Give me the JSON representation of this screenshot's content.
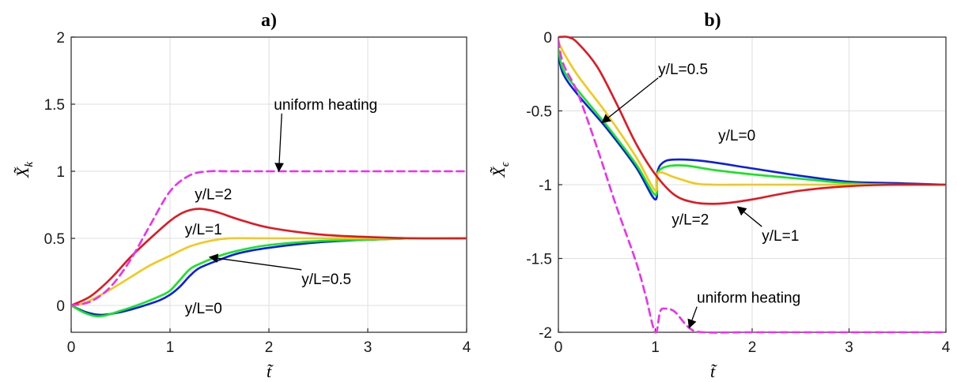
{
  "chart_data": [
    {
      "type": "line",
      "title": "a)",
      "xlabel": "t̃",
      "ylabel": "X̃",
      "ylabel_sub": "k",
      "xlim": [
        0,
        4
      ],
      "ylim": [
        -0.2,
        2
      ],
      "xticks": [
        "0",
        "1",
        "2",
        "3",
        "4"
      ],
      "yticks": [
        "0",
        "0.5",
        "1",
        "1.5",
        "2"
      ],
      "grid": true,
      "series": [
        {
          "name": "y/L=0",
          "color": "#0a1fe6",
          "dashed": false,
          "x": [
            0,
            0.15,
            0.3,
            0.5,
            0.7,
            0.9,
            1.0,
            1.1,
            1.2,
            1.3,
            1.5,
            1.7,
            2.0,
            2.5,
            3.0,
            3.5,
            4.0
          ],
          "y": [
            0,
            -0.05,
            -0.07,
            -0.05,
            -0.01,
            0.04,
            0.08,
            0.14,
            0.22,
            0.28,
            0.34,
            0.39,
            0.43,
            0.47,
            0.49,
            0.5,
            0.5
          ]
        },
        {
          "name": "y/L=0.5",
          "color": "#12e61e",
          "dashed": false,
          "x": [
            0,
            0.15,
            0.3,
            0.5,
            0.7,
            0.9,
            1.0,
            1.1,
            1.2,
            1.3,
            1.5,
            1.7,
            2.0,
            2.5,
            3.0,
            3.5,
            4.0
          ],
          "y": [
            0,
            -0.06,
            -0.08,
            -0.04,
            0.01,
            0.07,
            0.11,
            0.19,
            0.27,
            0.31,
            0.37,
            0.41,
            0.45,
            0.48,
            0.49,
            0.5,
            0.5
          ]
        },
        {
          "name": "y/L=1",
          "color": "#f5c816",
          "dashed": false,
          "x": [
            0,
            0.1,
            0.2,
            0.4,
            0.6,
            0.8,
            1.0,
            1.2,
            1.4,
            1.6,
            2.0,
            3.0,
            4.0
          ],
          "y": [
            0,
            0.01,
            0.04,
            0.12,
            0.21,
            0.3,
            0.37,
            0.44,
            0.48,
            0.5,
            0.5,
            0.5,
            0.5
          ]
        },
        {
          "name": "y/L=2",
          "color": "#e8141e",
          "dashed": false,
          "x": [
            0,
            0.2,
            0.4,
            0.6,
            0.8,
            1.0,
            1.1,
            1.2,
            1.3,
            1.4,
            1.5,
            1.7,
            2.0,
            2.5,
            3.0,
            3.5,
            4.0
          ],
          "y": [
            0,
            0.07,
            0.2,
            0.36,
            0.5,
            0.63,
            0.68,
            0.71,
            0.72,
            0.71,
            0.69,
            0.64,
            0.58,
            0.53,
            0.51,
            0.5,
            0.5
          ]
        },
        {
          "name": "uniform heating",
          "color": "#f02cf5",
          "dashed": true,
          "x": [
            0,
            0.2,
            0.4,
            0.6,
            0.8,
            1.0,
            1.2,
            1.4,
            1.6,
            2.0,
            3.0,
            4.0
          ],
          "y": [
            0,
            0.03,
            0.14,
            0.34,
            0.6,
            0.85,
            0.97,
            1.0,
            1.0,
            1.0,
            1.0,
            1.0
          ]
        }
      ],
      "annotations": [
        {
          "text": "uniform heating",
          "x": 2.05,
          "y": 1.46,
          "anchor": "start",
          "arrow_to": [
            2.1,
            1.0
          ]
        },
        {
          "text": "y/L=2",
          "x": 1.25,
          "y": 0.79,
          "anchor": "start"
        },
        {
          "text": "y/L=1",
          "x": 1.15,
          "y": 0.53,
          "anchor": "start"
        },
        {
          "text": "y/L=0.5",
          "x": 2.33,
          "y": 0.16,
          "anchor": "start",
          "arrow_to": [
            1.4,
            0.36
          ]
        },
        {
          "text": "y/L=0",
          "x": 1.15,
          "y": -0.06,
          "anchor": "start"
        }
      ]
    },
    {
      "type": "line",
      "title": "b)",
      "xlabel": "t̃",
      "ylabel": "X̃",
      "ylabel_sub": "ϵ",
      "xlim": [
        0,
        4
      ],
      "ylim": [
        -2,
        0
      ],
      "xticks": [
        "0",
        "1",
        "2",
        "3",
        "4"
      ],
      "yticks": [
        "0",
        "-0.5",
        "-1",
        "-1.5",
        "-2"
      ],
      "grid": true,
      "series": [
        {
          "name": "y/L=0",
          "color": "#0a1fe6",
          "dashed": false,
          "x": [
            0,
            0.05,
            0.2,
            0.5,
            0.8,
            1.0,
            1.02,
            1.08,
            1.2,
            1.5,
            2.0,
            2.5,
            3.0,
            3.5,
            4.0
          ],
          "y": [
            -0.12,
            -0.25,
            -0.39,
            -0.62,
            -0.88,
            -1.1,
            -0.92,
            -0.85,
            -0.83,
            -0.84,
            -0.89,
            -0.94,
            -0.98,
            -0.99,
            -1.0
          ]
        },
        {
          "name": "y/L=0.5",
          "color": "#12e61e",
          "dashed": false,
          "x": [
            0,
            0.05,
            0.2,
            0.5,
            0.8,
            1.0,
            1.02,
            1.1,
            1.3,
            1.6,
            2.0,
            2.5,
            3.0,
            3.5,
            4.0
          ],
          "y": [
            -0.08,
            -0.22,
            -0.36,
            -0.6,
            -0.86,
            -1.07,
            -0.93,
            -0.88,
            -0.87,
            -0.9,
            -0.93,
            -0.96,
            -0.99,
            -1.0,
            -1.0
          ]
        },
        {
          "name": "y/L=1",
          "color": "#f5c816",
          "dashed": false,
          "x": [
            0,
            0.05,
            0.2,
            0.5,
            0.8,
            1.0,
            1.03,
            1.2,
            1.4,
            1.6,
            2.0,
            3.0,
            4.0
          ],
          "y": [
            -0.03,
            -0.1,
            -0.26,
            -0.52,
            -0.81,
            -1.04,
            -0.92,
            -0.95,
            -0.99,
            -1.0,
            -1.0,
            -1.0,
            -1.0
          ]
        },
        {
          "name": "y/L=2",
          "color": "#e8141e",
          "dashed": false,
          "x": [
            0,
            0.1,
            0.2,
            0.4,
            0.6,
            0.8,
            1.0,
            1.2,
            1.4,
            1.6,
            1.8,
            2.0,
            2.5,
            3.0,
            3.5,
            4.0
          ],
          "y": [
            0,
            0,
            -0.04,
            -0.2,
            -0.45,
            -0.72,
            -0.93,
            -1.07,
            -1.12,
            -1.13,
            -1.12,
            -1.1,
            -1.04,
            -1.01,
            -1.0,
            -1.0
          ]
        },
        {
          "name": "uniform heating",
          "color": "#f02cf5",
          "dashed": true,
          "x": [
            0,
            0.05,
            0.2,
            0.4,
            0.6,
            0.8,
            0.9,
            1.0,
            1.05,
            1.1,
            1.2,
            1.35,
            1.5,
            2.0,
            3.0,
            4.0
          ],
          "y": [
            -0.02,
            -0.18,
            -0.38,
            -0.75,
            -1.15,
            -1.52,
            -1.75,
            -2.0,
            -1.86,
            -1.84,
            -1.86,
            -1.97,
            -2.0,
            -2.0,
            -2.0,
            -2.0
          ]
        }
      ],
      "annotations": [
        {
          "text": "y/L=0.5",
          "x": 1.03,
          "y": -0.25,
          "anchor": "start",
          "arrow_to": [
            0.45,
            -0.58
          ]
        },
        {
          "text": "y/L=0",
          "x": 1.65,
          "y": -0.7,
          "anchor": "start"
        },
        {
          "text": "y/L=2",
          "x": 1.17,
          "y": -1.27,
          "anchor": "start"
        },
        {
          "text": "y/L=1",
          "x": 2.1,
          "y": -1.38,
          "anchor": "start",
          "arrow_to": [
            1.85,
            -1.15
          ]
        },
        {
          "text": "uniform heating",
          "x": 1.43,
          "y": -1.8,
          "anchor": "start",
          "arrow_to": [
            1.35,
            -1.97
          ]
        }
      ]
    }
  ]
}
